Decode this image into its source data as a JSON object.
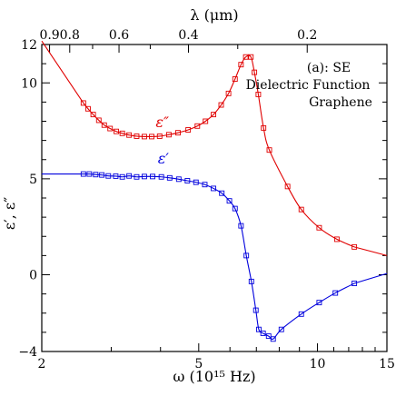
{
  "chart_data": {
    "type": "scatter",
    "annotation_lines": [
      "(a): SE",
      "Dielectric Function",
      "Graphene"
    ],
    "xlabel": "ω (10¹⁵ Hz)",
    "ylabel": "ε′, ε″",
    "top_xlabel": "λ (μm)",
    "xlim": [
      2,
      15
    ],
    "x_scale": "log",
    "ylim": [
      -4,
      12
    ],
    "x_ticks": [
      2,
      5,
      10,
      15
    ],
    "y_ticks": [
      -4,
      0,
      5,
      10
    ],
    "y_tick_labels": [
      "−4",
      "0",
      "5",
      "10"
    ],
    "y_top_label": "12",
    "top_ticks_um": [
      0.9,
      0.8,
      0.6,
      0.4,
      0.2
    ],
    "top_tick_labels": [
      "0.9",
      "0.8",
      "0.6",
      "0.4",
      "0.2"
    ],
    "series": [
      {
        "name": "ε″",
        "color": "#e00000",
        "marker": "square-open",
        "fit_curve": true,
        "x": [
          2.55,
          2.62,
          2.7,
          2.79,
          2.88,
          2.98,
          3.09,
          3.2,
          3.33,
          3.48,
          3.64,
          3.8,
          3.98,
          4.2,
          4.43,
          4.7,
          4.96,
          5.2,
          5.45,
          5.7,
          5.95,
          6.18,
          6.4,
          6.58,
          6.78,
          6.92,
          7.08,
          7.3,
          7.55,
          8.4,
          9.1,
          10.1,
          11.2,
          12.4
        ],
        "y": [
          8.95,
          8.65,
          8.35,
          8.05,
          7.8,
          7.62,
          7.47,
          7.37,
          7.28,
          7.22,
          7.2,
          7.2,
          7.22,
          7.3,
          7.4,
          7.55,
          7.75,
          8.0,
          8.35,
          8.85,
          9.45,
          10.2,
          10.95,
          11.35,
          11.35,
          10.55,
          9.4,
          7.65,
          6.5,
          4.6,
          3.4,
          2.45,
          1.85,
          1.45
        ]
      },
      {
        "name": "ε′",
        "color": "#0000dd",
        "marker": "square-open",
        "fit_curve": true,
        "x": [
          2.55,
          2.64,
          2.74,
          2.84,
          2.95,
          3.08,
          3.2,
          3.33,
          3.48,
          3.64,
          3.82,
          4.02,
          4.22,
          4.45,
          4.68,
          4.92,
          5.18,
          5.45,
          5.72,
          5.98,
          6.18,
          6.4,
          6.6,
          6.8,
          6.98,
          7.1,
          7.28,
          7.52,
          7.72,
          8.1,
          9.1,
          10.1,
          11.1,
          12.4
        ],
        "y": [
          5.25,
          5.25,
          5.22,
          5.2,
          5.15,
          5.14,
          5.1,
          5.15,
          5.1,
          5.12,
          5.12,
          5.1,
          5.05,
          4.98,
          4.9,
          4.82,
          4.7,
          4.5,
          4.25,
          3.85,
          3.45,
          2.55,
          1.0,
          -0.35,
          -1.85,
          -2.85,
          -3.05,
          -3.2,
          -3.35,
          -2.85,
          -2.05,
          -1.45,
          -0.95,
          -0.45
        ]
      }
    ]
  }
}
